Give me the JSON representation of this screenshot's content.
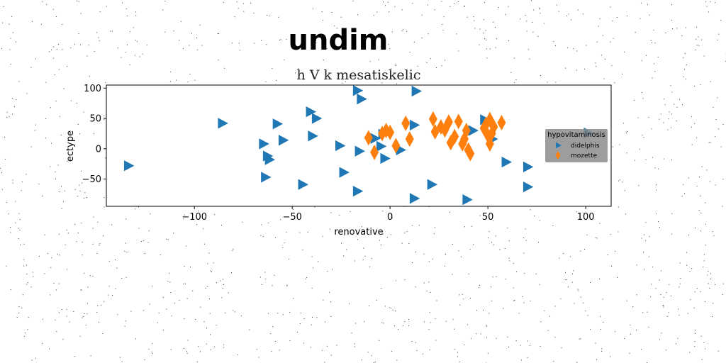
{
  "chart_data": {
    "type": "scatter",
    "suptitle": "undim",
    "title": "h V k mesatiskelic",
    "xlabel": "renovative",
    "ylabel": "ectype",
    "xlim": [
      -145,
      113
    ],
    "ylim": [
      -95,
      105
    ],
    "xticks": [
      -100,
      -50,
      0,
      50,
      100
    ],
    "yticks": [
      -50,
      0,
      50,
      100
    ],
    "xtick_labels": [
      "−100",
      "−50",
      "0",
      "50",
      "100"
    ],
    "ytick_labels": [
      "−50",
      "0",
      "50",
      "100"
    ],
    "grid": false,
    "legend": {
      "title": "hypovitaminosis",
      "placement": "center-right"
    },
    "colors": {
      "didelphis": "#1f77b4",
      "mozette": "#ff7f0e"
    },
    "series": [
      {
        "name": "didelphis",
        "marker": "triangle-right",
        "points": [
          {
            "x": -134,
            "y": -28
          },
          {
            "x": -86,
            "y": 42
          },
          {
            "x": -65,
            "y": 8
          },
          {
            "x": -63,
            "y": -12
          },
          {
            "x": -62,
            "y": -18
          },
          {
            "x": -64,
            "y": -47
          },
          {
            "x": -58,
            "y": 41
          },
          {
            "x": -55,
            "y": 14
          },
          {
            "x": -45,
            "y": -59
          },
          {
            "x": -41,
            "y": 61
          },
          {
            "x": -38,
            "y": 50
          },
          {
            "x": -40,
            "y": 21
          },
          {
            "x": -26,
            "y": 5
          },
          {
            "x": -24,
            "y": -39
          },
          {
            "x": -17,
            "y": 96
          },
          {
            "x": -15,
            "y": 82
          },
          {
            "x": -16,
            "y": -4
          },
          {
            "x": -17,
            "y": -70
          },
          {
            "x": -8,
            "y": 17
          },
          {
            "x": -4,
            "y": 24
          },
          {
            "x": -5,
            "y": 4
          },
          {
            "x": -3,
            "y": -16
          },
          {
            "x": 5,
            "y": -2
          },
          {
            "x": 13,
            "y": 95
          },
          {
            "x": 12,
            "y": 39
          },
          {
            "x": 12,
            "y": -82
          },
          {
            "x": 21,
            "y": -59
          },
          {
            "x": 39,
            "y": -84
          },
          {
            "x": 42,
            "y": 30
          },
          {
            "x": 48,
            "y": 48
          },
          {
            "x": 52,
            "y": 16
          },
          {
            "x": 59,
            "y": -22
          },
          {
            "x": 70,
            "y": -30
          },
          {
            "x": 70,
            "y": -63
          },
          {
            "x": 101,
            "y": 26
          }
        ]
      },
      {
        "name": "mozette",
        "marker": "thin-diamond",
        "points": [
          {
            "x": -11,
            "y": 18
          },
          {
            "x": -8,
            "y": -6
          },
          {
            "x": -4,
            "y": 25
          },
          {
            "x": -2,
            "y": 30
          },
          {
            "x": 0,
            "y": 27
          },
          {
            "x": 3,
            "y": 5
          },
          {
            "x": 8,
            "y": 42
          },
          {
            "x": 10,
            "y": 16
          },
          {
            "x": 22,
            "y": 49
          },
          {
            "x": 23,
            "y": 28
          },
          {
            "x": 26,
            "y": 36
          },
          {
            "x": 28,
            "y": 31
          },
          {
            "x": 30,
            "y": 44
          },
          {
            "x": 31,
            "y": 10
          },
          {
            "x": 33,
            "y": 20
          },
          {
            "x": 35,
            "y": 45
          },
          {
            "x": 37,
            "y": 8
          },
          {
            "x": 38,
            "y": 16
          },
          {
            "x": 39,
            "y": 30
          },
          {
            "x": 40,
            "y": -2
          },
          {
            "x": 41,
            "y": -8
          },
          {
            "x": 48,
            "y": 34
          },
          {
            "x": 49,
            "y": 40
          },
          {
            "x": 50,
            "y": 22
          },
          {
            "x": 51,
            "y": 48
          },
          {
            "x": 51,
            "y": 8
          },
          {
            "x": 52,
            "y": 25
          },
          {
            "x": 53,
            "y": 36
          },
          {
            "x": 57,
            "y": 43
          }
        ]
      }
    ]
  }
}
